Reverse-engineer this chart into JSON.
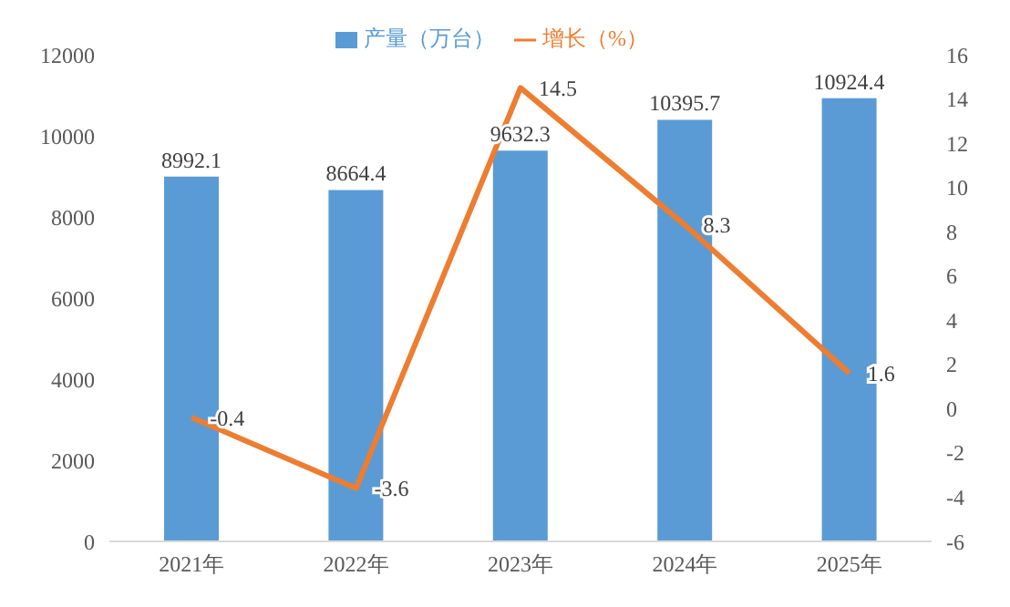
{
  "chart_data": {
    "type": "bar",
    "categories": [
      "2021年",
      "2022年",
      "2023年",
      "2024年",
      "2025年"
    ],
    "series": [
      {
        "name": "产量（万台）",
        "color": "#5b9bd5",
        "values": [
          8992.1,
          8664.4,
          9632.3,
          10395.7,
          10924.4
        ]
      },
      {
        "name": "增长（%）",
        "type": "line",
        "axis": "y2",
        "color": "#ed7d31",
        "values": [
          -0.4,
          -3.6,
          14.5,
          8.3,
          1.6
        ]
      }
    ],
    "ylim": [
      0,
      12000
    ],
    "yticks": [
      0,
      2000,
      4000,
      6000,
      8000,
      10000,
      12000
    ],
    "y2lim": [
      -6,
      16
    ],
    "y2ticks": [
      -6,
      -4,
      -2,
      0,
      2,
      4,
      6,
      8,
      10,
      12,
      14,
      16
    ],
    "legend": "top",
    "marker": "none",
    "data_labels": true
  }
}
